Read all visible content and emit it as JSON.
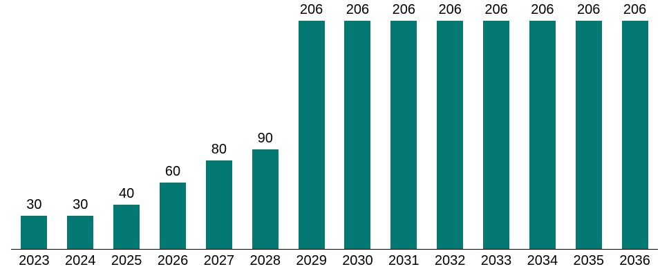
{
  "chart_data": {
    "type": "bar",
    "categories": [
      "2023",
      "2024",
      "2025",
      "2026",
      "2027",
      "2028",
      "2029",
      "2030",
      "2031",
      "2032",
      "2033",
      "2034",
      "2035",
      "2036"
    ],
    "values": [
      30,
      30,
      40,
      60,
      80,
      90,
      206,
      206,
      206,
      206,
      206,
      206,
      206,
      206
    ],
    "title": "",
    "xlabel": "",
    "ylabel": "",
    "ylim": [
      0,
      225
    ],
    "grid": false,
    "legend": "none",
    "y_axis_visible": false,
    "data_labels_position": "above-bars",
    "colors": {
      "bar": "#047872",
      "axis_line": "#000000",
      "label_text": "#000000",
      "background": "#ffffff"
    }
  }
}
